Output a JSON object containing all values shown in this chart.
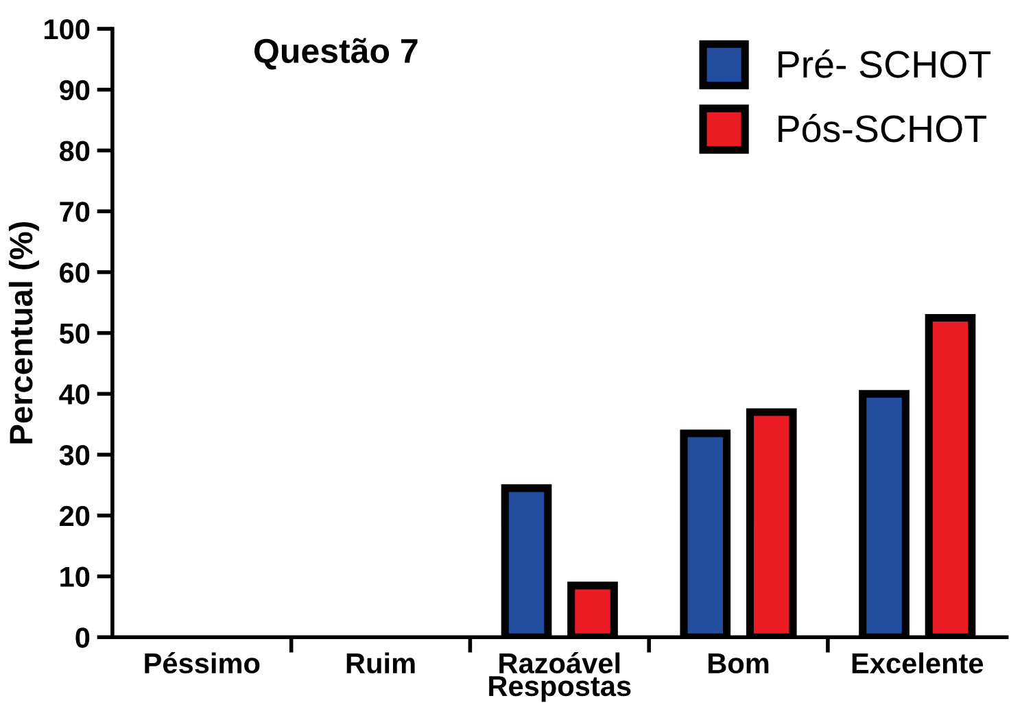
{
  "chart_data": {
    "type": "bar",
    "title": "Questão 7",
    "xlabel": "Respostas",
    "ylabel": "Percentual (%)",
    "categories": [
      "Péssimo",
      "Ruim",
      "Razoável",
      "Bom",
      "Excelente"
    ],
    "series": [
      {
        "name": "Pré- SCHOT",
        "color": "#234ea0",
        "values": [
          0,
          0,
          24.5,
          33.5,
          40
        ]
      },
      {
        "name": "Pós-SCHOT",
        "color": "#ec1c24",
        "values": [
          0,
          0,
          8.5,
          37,
          52.5
        ]
      }
    ],
    "ylim": [
      0,
      100
    ],
    "yticks": [
      0,
      10,
      20,
      30,
      40,
      50,
      60,
      70,
      80,
      90,
      100
    ],
    "grid": false,
    "legend": "top right"
  }
}
